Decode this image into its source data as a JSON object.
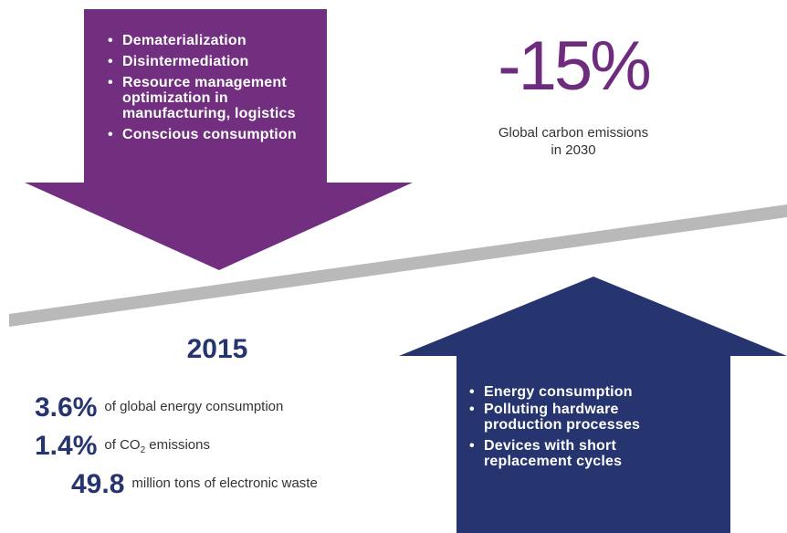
{
  "top_arrow": {
    "items": [
      "Dematerialization",
      "Disintermediation",
      "Resource management optimization in manufacturing, logistics",
      "Conscious consumption"
    ]
  },
  "headline": {
    "value": "-15%",
    "caption": "Global carbon emissions in 2030"
  },
  "year": "2015",
  "stats": [
    {
      "value": "3.6%",
      "text": "of global energy consumption"
    },
    {
      "value": "1.4%",
      "text": "of CO",
      "sub": "2",
      "text_after": " emissions"
    },
    {
      "value": "49.8",
      "text": "million tons of electronic waste"
    }
  ],
  "bottom_arrow": {
    "items": [
      "Energy consumption",
      "Polluting hardware production processes",
      "Devices with short replacement cycles"
    ]
  }
}
